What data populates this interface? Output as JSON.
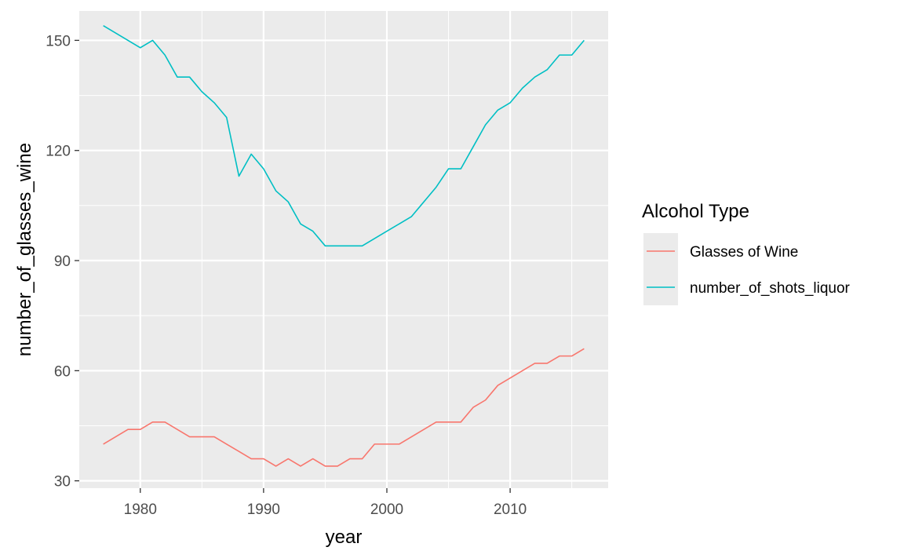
{
  "chart_data": {
    "type": "line",
    "xlabel": "year",
    "ylabel": "number_of_glasses_wine",
    "xlim": [
      1975.5,
      1917.5
    ],
    "ylim": [
      28.0,
      158.0
    ],
    "x_ticks": [
      1980,
      1990,
      2000,
      2010
    ],
    "y_ticks": [
      30,
      60,
      90,
      120,
      150
    ],
    "grid": true,
    "legend": {
      "title": "Alcohol Type",
      "position": "right"
    },
    "colors": {
      "panel": "#ebebeb",
      "grid": "#ffffff",
      "wine": "#f8766d",
      "liquor": "#00bfc4"
    },
    "x": [
      1977,
      1978,
      1979,
      1980,
      1981,
      1982,
      1983,
      1984,
      1985,
      1986,
      1987,
      1988,
      1989,
      1990,
      1991,
      1992,
      1993,
      1994,
      1995,
      1996,
      1997,
      1998,
      1999,
      2000,
      2001,
      2002,
      2003,
      2004,
      2005,
      2006,
      2007,
      2008,
      2009,
      2010,
      2011,
      2012,
      2013,
      2014,
      2015,
      2016
    ],
    "series": [
      {
        "name": "Glasses of Wine",
        "values": [
          40,
          42,
          44,
          44,
          46,
          46,
          44,
          42,
          42,
          42,
          40,
          38,
          36,
          36,
          34,
          36,
          34,
          36,
          34,
          34,
          36,
          36,
          40,
          40,
          40,
          42,
          44,
          46,
          46,
          46,
          50,
          52,
          56,
          58,
          60,
          62,
          62,
          64,
          64,
          66
        ]
      },
      {
        "name": "number_of_shots_liquor",
        "values": [
          154,
          152,
          150,
          148,
          150,
          146,
          140,
          140,
          136,
          133,
          129,
          113,
          119,
          115,
          109,
          106,
          100,
          98,
          94,
          94,
          94,
          94,
          96,
          98,
          100,
          102,
          106,
          110,
          115,
          115,
          121,
          127,
          131,
          133,
          137,
          140,
          142,
          146,
          146,
          150
        ]
      }
    ]
  }
}
